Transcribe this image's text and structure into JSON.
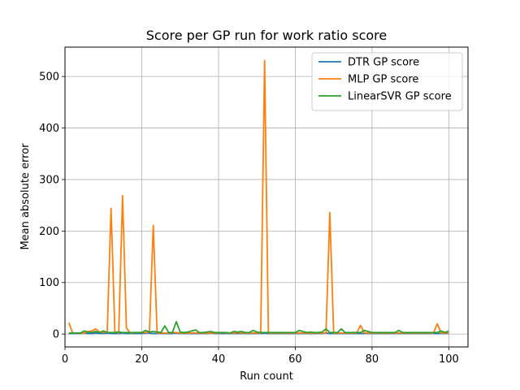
{
  "chart_data": {
    "type": "line",
    "title": "Score per GP run for work ratio score",
    "xlabel": "Run count",
    "ylabel": "Mean absolute error",
    "xlim": [
      0,
      105
    ],
    "ylim": [
      -25,
      557
    ],
    "xticks": [
      0,
      20,
      40,
      60,
      80,
      100
    ],
    "yticks": [
      0,
      100,
      200,
      300,
      400,
      500
    ],
    "grid": true,
    "legend_position": "top-right",
    "x": [
      1,
      2,
      3,
      4,
      5,
      6,
      7,
      8,
      9,
      10,
      11,
      12,
      13,
      14,
      15,
      16,
      17,
      18,
      19,
      20,
      21,
      22,
      23,
      24,
      25,
      26,
      27,
      28,
      29,
      30,
      31,
      32,
      33,
      34,
      35,
      36,
      37,
      38,
      39,
      40,
      41,
      42,
      43,
      44,
      45,
      46,
      47,
      48,
      49,
      50,
      51,
      52,
      53,
      54,
      55,
      56,
      57,
      58,
      59,
      60,
      61,
      62,
      63,
      64,
      65,
      66,
      67,
      68,
      69,
      70,
      71,
      72,
      73,
      74,
      75,
      76,
      77,
      78,
      79,
      80,
      81,
      82,
      83,
      84,
      85,
      86,
      87,
      88,
      89,
      90,
      91,
      92,
      93,
      94,
      95,
      96,
      97,
      98,
      99,
      100
    ],
    "series": [
      {
        "name": "DTR GP score",
        "color": "#1f77b4",
        "values": [
          1,
          1,
          1,
          1,
          2,
          1,
          1,
          2,
          1,
          1,
          2,
          1,
          1,
          1,
          2,
          1,
          1,
          1,
          1,
          1,
          2,
          2,
          1,
          1,
          1,
          1,
          1,
          1,
          2,
          1,
          1,
          1,
          1,
          1,
          1,
          1,
          1,
          2,
          1,
          1,
          1,
          1,
          1,
          1,
          1,
          1,
          1,
          1,
          1,
          1,
          1,
          2,
          1,
          1,
          1,
          1,
          1,
          1,
          1,
          1,
          1,
          1,
          1,
          1,
          1,
          1,
          1,
          2,
          1,
          1,
          1,
          1,
          1,
          1,
          1,
          1,
          1,
          1,
          1,
          1,
          1,
          1,
          1,
          1,
          1,
          1,
          1,
          1,
          1,
          1,
          1,
          1,
          1,
          1,
          1,
          1,
          1,
          1,
          1,
          1
        ]
      },
      {
        "name": "MLP GP score",
        "color": "#ff7f0e",
        "values": [
          22,
          2,
          2,
          2,
          2,
          5,
          6,
          10,
          4,
          3,
          4,
          244,
          5,
          2,
          269,
          12,
          2,
          3,
          3,
          3,
          3,
          4,
          211,
          2,
          2,
          2,
          2,
          3,
          3,
          2,
          2,
          2,
          2,
          2,
          2,
          2,
          2,
          2,
          2,
          2,
          3,
          2,
          2,
          2,
          3,
          2,
          2,
          2,
          2,
          2,
          2,
          531,
          2,
          2,
          2,
          2,
          2,
          2,
          2,
          2,
          2,
          2,
          2,
          2,
          2,
          2,
          2,
          2,
          236,
          2,
          2,
          2,
          2,
          2,
          2,
          2,
          17,
          2,
          2,
          2,
          2,
          2,
          2,
          2,
          2,
          2,
          2,
          2,
          2,
          2,
          2,
          2,
          2,
          2,
          2,
          2,
          20,
          2,
          2,
          2
        ]
      },
      {
        "name": "LinearSVR GP score",
        "color": "#2ca02c",
        "values": [
          2,
          2,
          2,
          2,
          6,
          4,
          3,
          5,
          3,
          6,
          3,
          3,
          3,
          4,
          3,
          3,
          3,
          3,
          3,
          3,
          7,
          4,
          5,
          4,
          3,
          16,
          3,
          3,
          24,
          4,
          3,
          4,
          6,
          8,
          3,
          3,
          4,
          5,
          3,
          3,
          3,
          3,
          2,
          5,
          4,
          5,
          3,
          3,
          7,
          4,
          3,
          3,
          3,
          3,
          3,
          3,
          3,
          3,
          3,
          3,
          7,
          5,
          3,
          4,
          3,
          3,
          4,
          10,
          3,
          3,
          3,
          10,
          3,
          3,
          3,
          3,
          3,
          7,
          5,
          3,
          3,
          3,
          3,
          3,
          3,
          3,
          7,
          3,
          3,
          3,
          3,
          3,
          3,
          3,
          3,
          3,
          3,
          6,
          3,
          6
        ]
      }
    ]
  }
}
